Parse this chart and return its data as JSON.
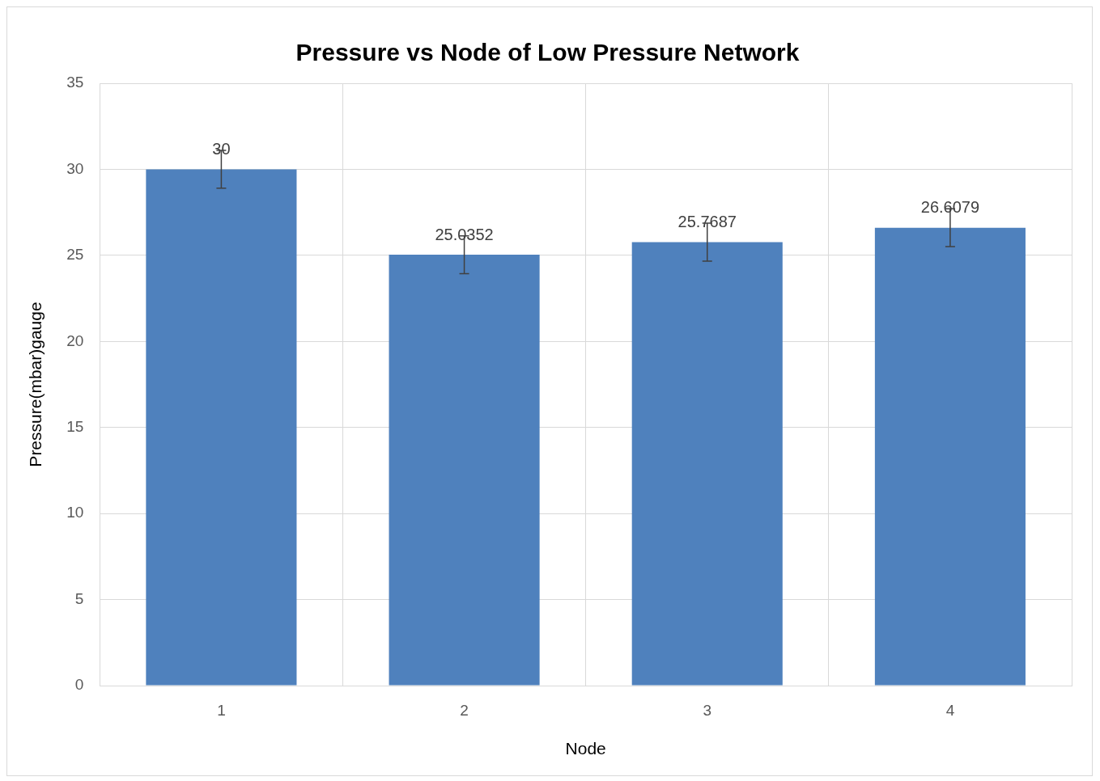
{
  "chart_data": {
    "type": "bar",
    "title": "Pressure vs Node of Low Pressure Network",
    "xlabel": "Node",
    "ylabel": "Pressure(mbar)gauge",
    "categories": [
      "1",
      "2",
      "3",
      "4"
    ],
    "values": [
      30,
      25.0352,
      25.7687,
      26.6079
    ],
    "errors": [
      1.1,
      1.1,
      1.1,
      1.1
    ],
    "color": "#4f81bd",
    "ylim": [
      0,
      35
    ],
    "yticks": [
      0,
      5,
      10,
      15,
      20,
      25,
      30,
      35
    ],
    "grid": true,
    "data_labels": true
  }
}
